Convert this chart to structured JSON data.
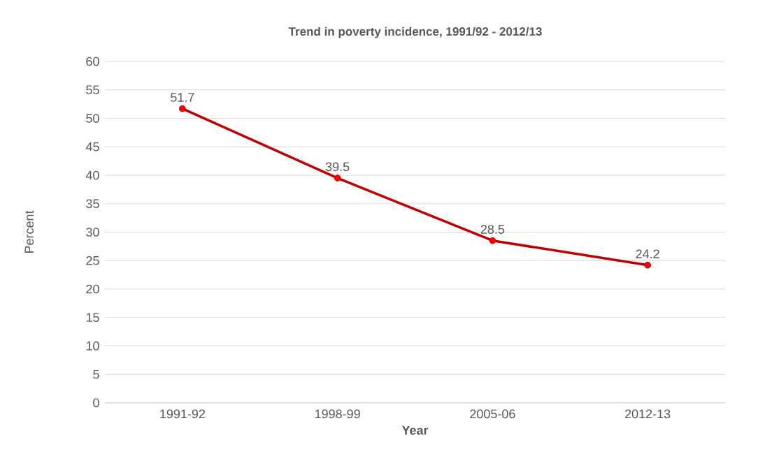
{
  "chart_data": {
    "type": "line",
    "title": "Trend in poverty incidence, 1991/92 - 2012/13",
    "xlabel": "Year",
    "ylabel": "Percent",
    "categories": [
      "1991-92",
      "1998-99",
      "2005-06",
      "2012-13"
    ],
    "series": [
      {
        "color": "#c00000",
        "values": [
          51.7,
          39.5,
          28.5,
          24.2
        ]
      }
    ],
    "ylim": [
      0,
      60
    ],
    "yticks": [
      0,
      5,
      10,
      15,
      20,
      25,
      30,
      35,
      40,
      45,
      50,
      55,
      60
    ],
    "grid": "y",
    "marker": "circle",
    "line_style": "solid",
    "data_labels": true
  }
}
